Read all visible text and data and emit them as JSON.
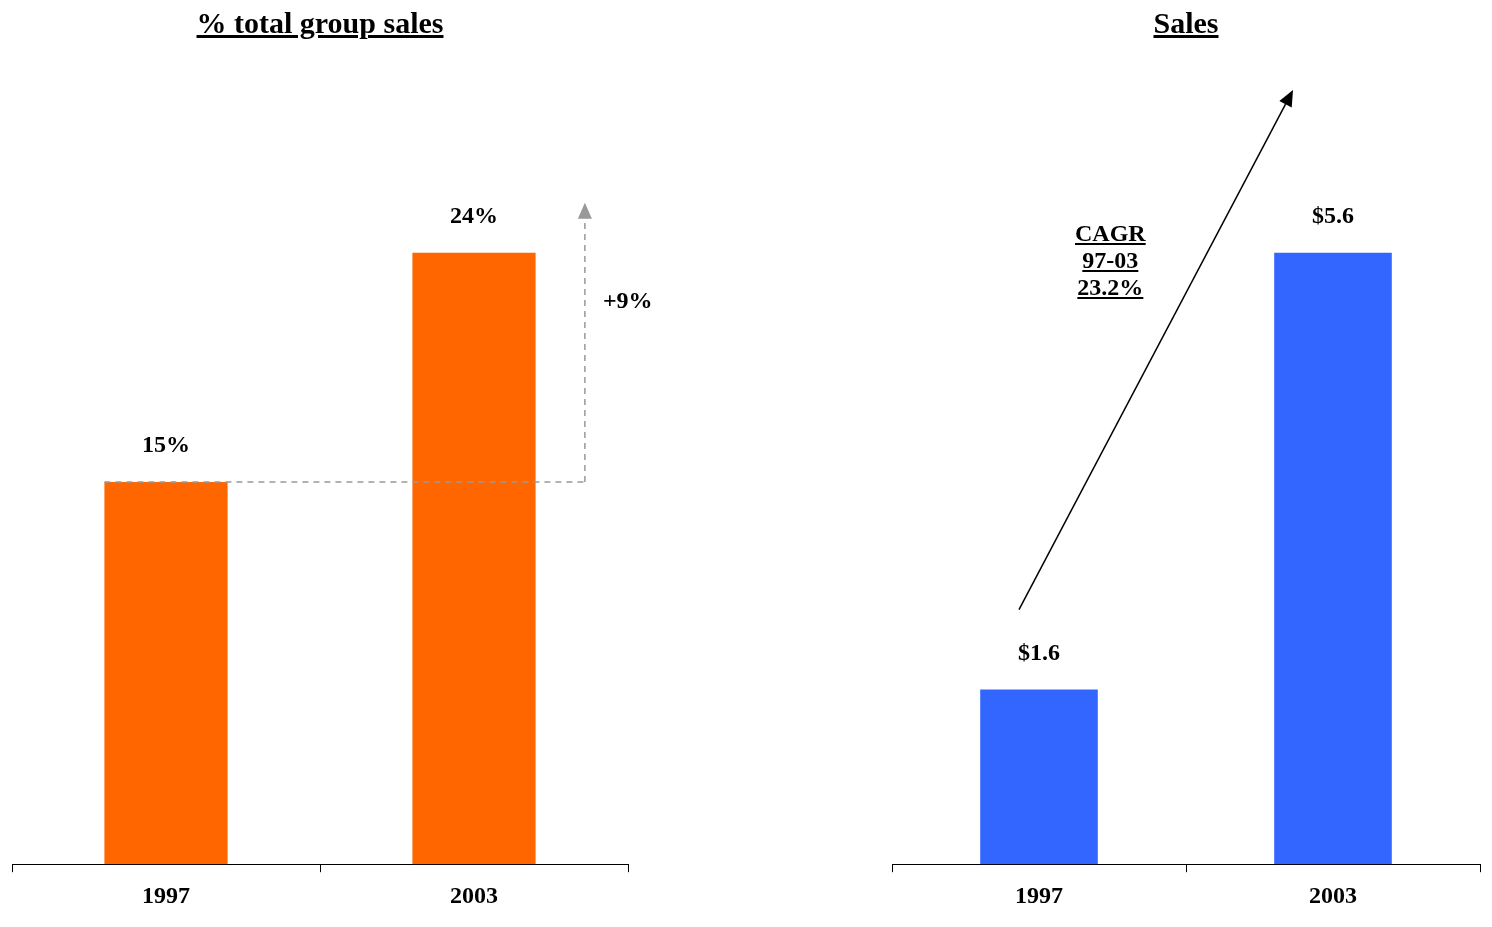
{
  "chart_data": [
    {
      "type": "bar",
      "title": "% total group sales",
      "categories": [
        "1997",
        "2003"
      ],
      "values": [
        15,
        24
      ],
      "color": "#ff6600",
      "value_labels": [
        "15%",
        "24%"
      ],
      "tick_labels": "x",
      "annotations": [
        "+9%"
      ],
      "ref_lines": [
        {
          "axis": "y",
          "value": 15,
          "color": "#999999",
          "line_style": "dashed"
        }
      ]
    },
    {
      "type": "bar",
      "title": "Sales",
      "categories": [
        "1997",
        "2003"
      ],
      "values": [
        1.6,
        5.6
      ],
      "color": "#3366ff",
      "value_labels": [
        "$1.6",
        "$5.6"
      ],
      "tick_labels": "x",
      "annotations": [
        "CAGR\n97-03\n23.2%"
      ]
    }
  ]
}
